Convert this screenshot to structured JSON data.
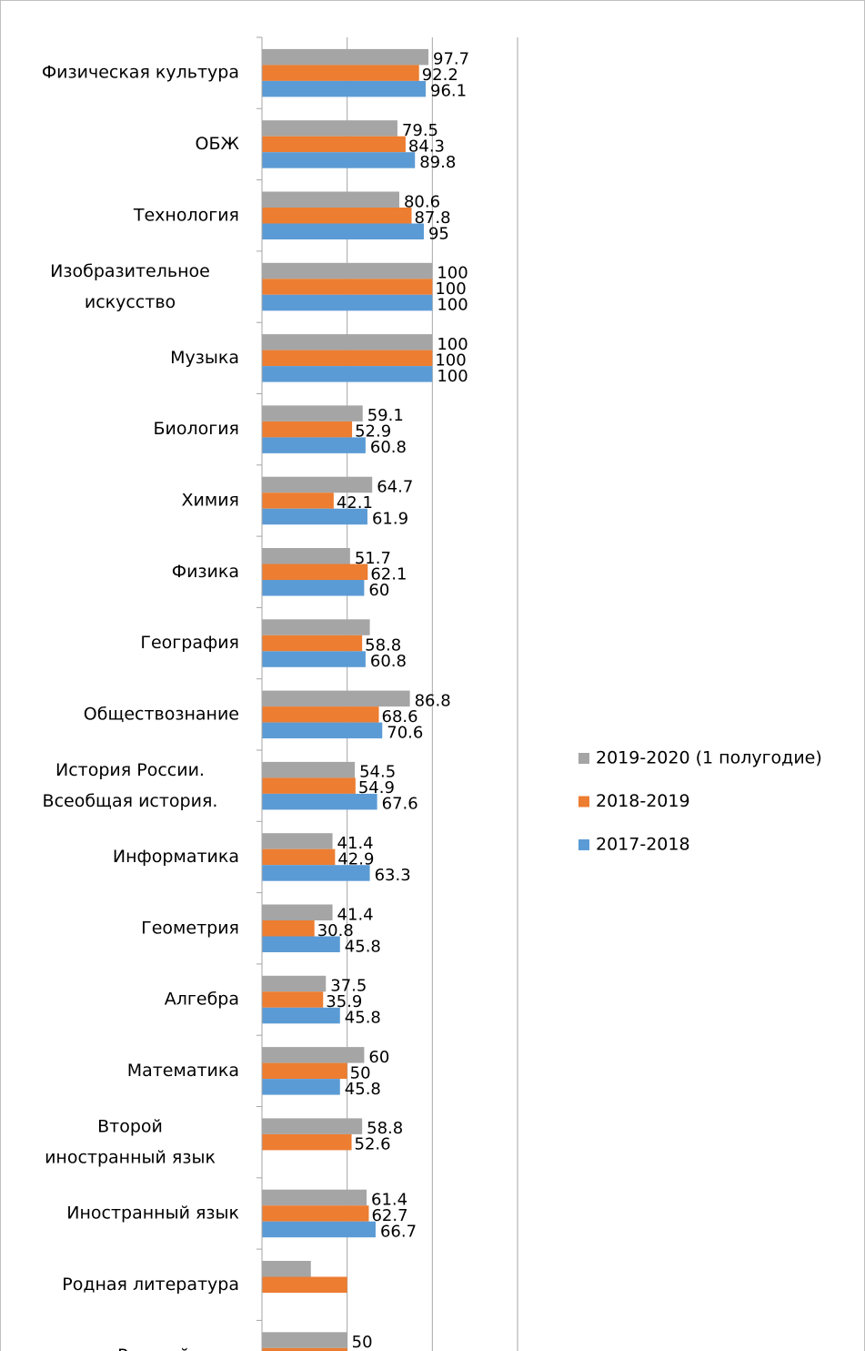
{
  "chart_data": {
    "type": "bar",
    "orientation": "horizontal",
    "categories": [
      "Физическая культура",
      "ОБЖ",
      "Технология",
      "Изобразительное искусство",
      "Музыка",
      "Биология",
      "Химия",
      "Физика",
      "География",
      "Обществознание",
      "История России. Всеобщая история.",
      "Информатика",
      "Геометрия",
      "Алгебра",
      "Математика",
      "Второй иностранный язык",
      "Иностранный язык",
      "Родная литература",
      "Русский язык"
    ],
    "series": [
      {
        "name": "2019-2020 (1 полугодие)",
        "color": "#a5a5a5",
        "values": [
          97.7,
          79.5,
          80.6,
          100,
          100,
          59.1,
          64.7,
          51.7,
          63.3,
          86.8,
          54.5,
          41.4,
          41.4,
          37.5,
          60,
          58.8,
          61.4,
          28.7,
          50
        ],
        "value_labels": [
          "97.7",
          "79.5",
          "80.6",
          "100",
          "100",
          "59.1",
          "64.7",
          "51.7",
          null,
          "86.8",
          "54.5",
          "41.4",
          "41.4",
          "37.5",
          "60",
          "58.8",
          "61.4",
          null,
          "50"
        ]
      },
      {
        "name": "2018-2019",
        "color": "#ed7d31",
        "values": [
          92.2,
          84.3,
          87.8,
          100,
          100,
          52.9,
          42.1,
          62.1,
          58.8,
          68.6,
          54.9,
          42.9,
          30.8,
          35.9,
          50,
          52.6,
          62.7,
          50,
          50
        ],
        "value_labels": [
          "92.2",
          "84.3",
          "87.8",
          "100",
          "100",
          "52.9",
          "42.1",
          "62.1",
          "58.8",
          "68.6",
          "54.9",
          "42.9",
          "30.8",
          "35.9",
          "50",
          "52.6",
          "62.7",
          null,
          null
        ]
      },
      {
        "name": "2017-2018",
        "color": "#5b9bd5",
        "values": [
          96.1,
          89.8,
          95,
          100,
          100,
          60.8,
          61.9,
          60,
          60.8,
          70.6,
          67.6,
          63.3,
          45.8,
          45.8,
          45.8,
          null,
          66.7,
          null,
          null
        ],
        "value_labels": [
          "96.1",
          "89.8",
          "95",
          "100",
          "100",
          "60.8",
          "61.9",
          "60",
          "60.8",
          "70.6",
          "67.6",
          "63.3",
          "45.8",
          "45.8",
          "45.8",
          null,
          "66.7",
          null,
          null
        ]
      }
    ],
    "xlim": [
      0,
      150
    ],
    "xticks": [
      0,
      50,
      100,
      150
    ],
    "tick_labels": false,
    "grid": true,
    "legend": "right"
  }
}
